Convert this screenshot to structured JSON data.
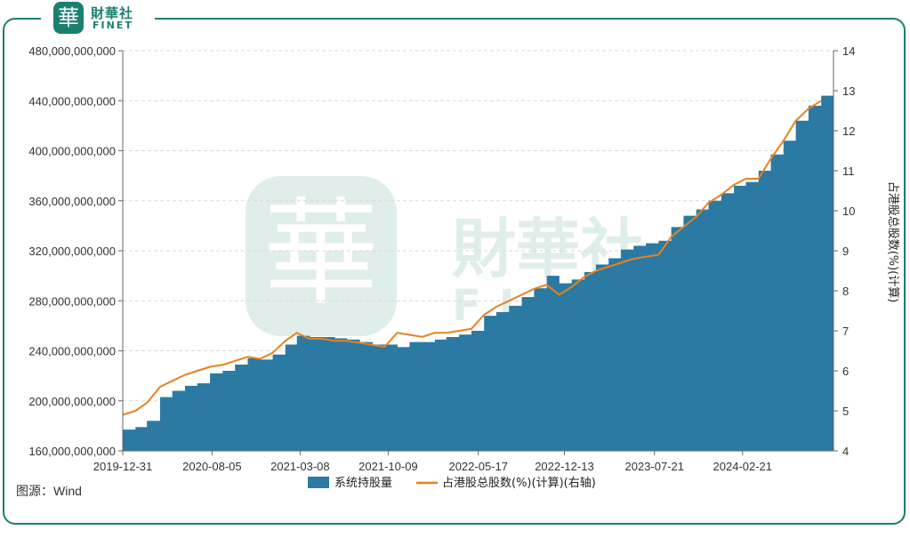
{
  "brand": {
    "mark": "華",
    "name_cn": "財華社",
    "name_en": "FINET"
  },
  "source": "图源：Wind",
  "colors": {
    "bar": "#2a7aa3",
    "line": "#e8821e",
    "frame": "#1b7f6f"
  },
  "chart_data": {
    "type": "bar",
    "combo": "bar+line",
    "x_ticks": [
      "2019-12-31",
      "2020-08-05",
      "2021-03-08",
      "2021-10-09",
      "2022-05-17",
      "2022-12-13",
      "2023-07-21",
      "2024-02-21"
    ],
    "y_left": {
      "min": 160000000000,
      "max": 480000000000,
      "ticks": [
        "160,000,000,000",
        "200,000,000,000",
        "240,000,000,000",
        "280,000,000,000",
        "320,000,000,000",
        "360,000,000,000",
        "400,000,000,000",
        "440,000,000,000",
        "480,000,000,000"
      ]
    },
    "y_right": {
      "min": 4,
      "max": 14,
      "label": "占港股总股数(%)(计算)",
      "ticks": [
        "4",
        "5",
        "6",
        "7",
        "8",
        "9",
        "10",
        "11",
        "12",
        "13",
        "14"
      ]
    },
    "grid": true,
    "legend": {
      "position": "bottom-center"
    },
    "series": [
      {
        "name": "系统持股量",
        "kind": "bar",
        "axis": "left",
        "dates": [
          "2019-12-31",
          "2020-01-31",
          "2020-02-28",
          "2020-03-31",
          "2020-04-30",
          "2020-05-31",
          "2020-06-30",
          "2020-07-31",
          "2020-08-31",
          "2020-09-30",
          "2020-10-31",
          "2020-11-30",
          "2020-12-31",
          "2021-01-31",
          "2021-02-28",
          "2021-03-31",
          "2021-04-30",
          "2021-05-31",
          "2021-06-30",
          "2021-07-31",
          "2021-08-31",
          "2021-09-30",
          "2021-10-31",
          "2021-11-30",
          "2021-12-31",
          "2022-01-31",
          "2022-02-28",
          "2022-03-31",
          "2022-04-30",
          "2022-05-31",
          "2022-06-30",
          "2022-07-31",
          "2022-08-31",
          "2022-09-30",
          "2022-10-31",
          "2022-11-30",
          "2022-12-31",
          "2023-01-31",
          "2023-02-28",
          "2023-03-31",
          "2023-04-30",
          "2023-05-31",
          "2023-06-30",
          "2023-07-31",
          "2023-08-31",
          "2023-09-30",
          "2023-10-31",
          "2023-11-30",
          "2023-12-31",
          "2024-01-31",
          "2024-02-29",
          "2024-03-31",
          "2024-04-30",
          "2024-05-31",
          "2024-06-30",
          "2024-07-31",
          "2024-08-31"
        ],
        "values": [
          177000000000,
          179000000000,
          184000000000,
          203000000000,
          208000000000,
          212000000000,
          214000000000,
          222000000000,
          224000000000,
          229000000000,
          234000000000,
          233000000000,
          237000000000,
          245000000000,
          252000000000,
          251000000000,
          251000000000,
          250000000000,
          249000000000,
          247000000000,
          245000000000,
          245000000000,
          243000000000,
          247000000000,
          247000000000,
          249000000000,
          251000000000,
          253000000000,
          256000000000,
          268000000000,
          271000000000,
          276000000000,
          283000000000,
          290000000000,
          300000000000,
          294000000000,
          297000000000,
          303000000000,
          309000000000,
          314000000000,
          321000000000,
          324000000000,
          326000000000,
          328000000000,
          339000000000,
          348000000000,
          353000000000,
          360000000000,
          366000000000,
          372000000000,
          375000000000,
          384000000000,
          397000000000,
          408000000000,
          424000000000,
          436000000000,
          444000000000
        ]
      },
      {
        "name": "占港股总股数(%)(计算)(右轴)",
        "kind": "line",
        "axis": "right",
        "dates": [
          "2019-12-31",
          "2020-01-31",
          "2020-02-28",
          "2020-03-31",
          "2020-04-30",
          "2020-05-31",
          "2020-06-30",
          "2020-07-31",
          "2020-08-31",
          "2020-09-30",
          "2020-10-31",
          "2020-11-30",
          "2020-12-31",
          "2021-01-31",
          "2021-02-28",
          "2021-03-31",
          "2021-04-30",
          "2021-05-31",
          "2021-06-30",
          "2021-07-31",
          "2021-08-31",
          "2021-09-30",
          "2021-10-31",
          "2021-11-30",
          "2021-12-31",
          "2022-01-31",
          "2022-02-28",
          "2022-03-31",
          "2022-04-30",
          "2022-05-31",
          "2022-06-30",
          "2022-07-31",
          "2022-08-31",
          "2022-09-30",
          "2022-10-31",
          "2022-11-30",
          "2022-12-31",
          "2023-01-31",
          "2023-02-28",
          "2023-03-31",
          "2023-04-30",
          "2023-05-31",
          "2023-06-30",
          "2023-07-31",
          "2023-08-31",
          "2023-09-30",
          "2023-10-31",
          "2023-11-30",
          "2023-12-31",
          "2024-01-31",
          "2024-02-29",
          "2024-03-31",
          "2024-04-30",
          "2024-05-31",
          "2024-06-30",
          "2024-07-31",
          "2024-08-31"
        ],
        "values": [
          4.9,
          5.0,
          5.2,
          5.6,
          5.75,
          5.9,
          6.0,
          6.1,
          6.15,
          6.25,
          6.35,
          6.3,
          6.45,
          6.75,
          6.95,
          6.8,
          6.8,
          6.75,
          6.75,
          6.7,
          6.65,
          6.6,
          6.95,
          6.9,
          6.85,
          6.95,
          6.95,
          7.0,
          7.05,
          7.4,
          7.6,
          7.75,
          7.9,
          8.05,
          8.15,
          7.9,
          8.1,
          8.35,
          8.5,
          8.6,
          8.7,
          8.8,
          8.85,
          8.9,
          9.35,
          9.6,
          9.85,
          10.2,
          10.4,
          10.65,
          10.8,
          10.8,
          11.3,
          11.75,
          12.25,
          12.55,
          12.75
        ]
      }
    ]
  }
}
